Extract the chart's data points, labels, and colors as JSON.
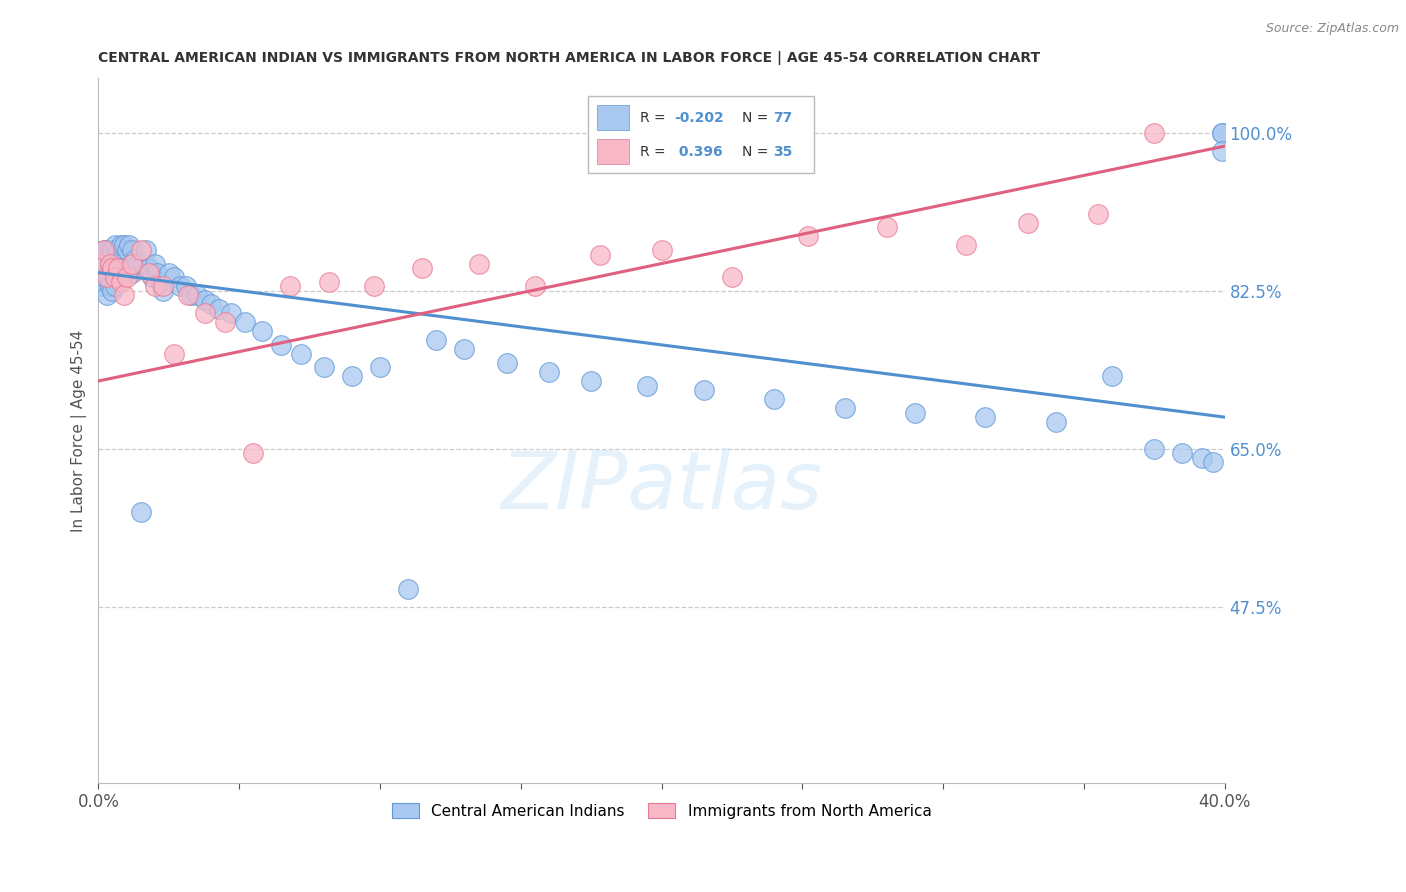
{
  "title": "CENTRAL AMERICAN INDIAN VS IMMIGRANTS FROM NORTH AMERICA IN LABOR FORCE | AGE 45-54 CORRELATION CHART",
  "source": "Source: ZipAtlas.com",
  "ylabel": "In Labor Force | Age 45-54",
  "xmin": 0.0,
  "xmax": 0.4,
  "ymin": 0.28,
  "ymax": 1.06,
  "right_yticks": [
    1.0,
    0.825,
    0.65,
    0.475
  ],
  "right_yticklabels": [
    "100.0%",
    "82.5%",
    "65.0%",
    "47.5%"
  ],
  "blue_R": -0.202,
  "blue_N": 77,
  "pink_R": 0.396,
  "pink_N": 35,
  "blue_color": "#A8C8F0",
  "pink_color": "#F8B8C8",
  "blue_edge_color": "#6098D8",
  "pink_edge_color": "#E87890",
  "blue_line_color": "#5090D0",
  "pink_line_color": "#E06080",
  "legend_label_blue": "Central American Indians",
  "legend_label_pink": "Immigrants from North America",
  "blue_trend_x0": 0.0,
  "blue_trend_y0": 0.845,
  "blue_trend_x1": 0.4,
  "blue_trend_y1": 0.685,
  "pink_trend_x0": 0.0,
  "pink_trend_y0": 0.725,
  "pink_trend_x1": 0.4,
  "pink_trend_y1": 0.985,
  "blue_x": [
    0.001,
    0.001,
    0.002,
    0.002,
    0.003,
    0.003,
    0.003,
    0.004,
    0.004,
    0.004,
    0.005,
    0.005,
    0.005,
    0.006,
    0.006,
    0.006,
    0.007,
    0.007,
    0.008,
    0.008,
    0.009,
    0.009,
    0.01,
    0.01,
    0.011,
    0.011,
    0.012,
    0.012,
    0.013,
    0.014,
    0.015,
    0.016,
    0.017,
    0.018,
    0.019,
    0.02,
    0.021,
    0.022,
    0.023,
    0.025,
    0.027,
    0.029,
    0.031,
    0.033,
    0.035,
    0.038,
    0.04,
    0.043,
    0.047,
    0.052,
    0.058,
    0.065,
    0.072,
    0.08,
    0.09,
    0.1,
    0.11,
    0.12,
    0.13,
    0.145,
    0.16,
    0.175,
    0.195,
    0.215,
    0.24,
    0.265,
    0.29,
    0.315,
    0.34,
    0.36,
    0.375,
    0.385,
    0.392,
    0.396,
    0.399,
    0.399,
    0.399
  ],
  "blue_y": [
    0.855,
    0.83,
    0.87,
    0.84,
    0.87,
    0.845,
    0.82,
    0.87,
    0.855,
    0.83,
    0.87,
    0.85,
    0.825,
    0.875,
    0.855,
    0.83,
    0.87,
    0.845,
    0.875,
    0.85,
    0.875,
    0.85,
    0.87,
    0.845,
    0.875,
    0.85,
    0.87,
    0.845,
    0.86,
    0.855,
    0.58,
    0.855,
    0.87,
    0.85,
    0.84,
    0.855,
    0.845,
    0.835,
    0.825,
    0.845,
    0.84,
    0.83,
    0.83,
    0.82,
    0.82,
    0.815,
    0.81,
    0.805,
    0.8,
    0.79,
    0.78,
    0.765,
    0.755,
    0.74,
    0.73,
    0.74,
    0.495,
    0.77,
    0.76,
    0.745,
    0.735,
    0.725,
    0.72,
    0.715,
    0.705,
    0.695,
    0.69,
    0.685,
    0.68,
    0.73,
    0.65,
    0.645,
    0.64,
    0.635,
    1.0,
    1.0,
    0.98
  ],
  "pink_x": [
    0.001,
    0.002,
    0.003,
    0.004,
    0.005,
    0.006,
    0.007,
    0.008,
    0.009,
    0.01,
    0.012,
    0.015,
    0.018,
    0.02,
    0.023,
    0.027,
    0.032,
    0.038,
    0.045,
    0.055,
    0.068,
    0.082,
    0.098,
    0.115,
    0.135,
    0.155,
    0.178,
    0.2,
    0.225,
    0.252,
    0.28,
    0.308,
    0.33,
    0.355,
    0.375
  ],
  "pink_y": [
    0.855,
    0.87,
    0.84,
    0.855,
    0.85,
    0.84,
    0.85,
    0.835,
    0.82,
    0.84,
    0.855,
    0.87,
    0.845,
    0.83,
    0.83,
    0.755,
    0.82,
    0.8,
    0.79,
    0.645,
    0.83,
    0.835,
    0.83,
    0.85,
    0.855,
    0.83,
    0.865,
    0.87,
    0.84,
    0.885,
    0.895,
    0.875,
    0.9,
    0.91,
    1.0
  ]
}
